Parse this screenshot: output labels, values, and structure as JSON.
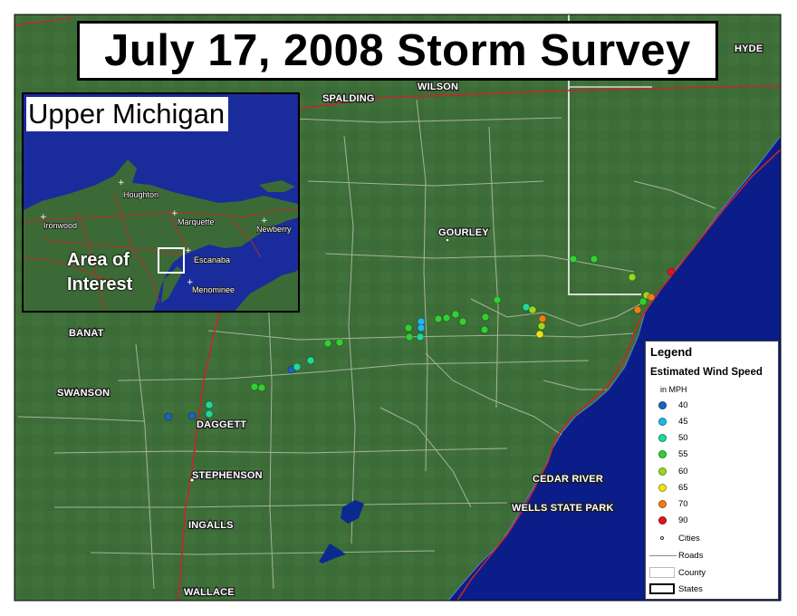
{
  "title": "July 17, 2008 Storm Survey",
  "inset": {
    "title": "Upper Michigan",
    "area_label_line1": "Area of",
    "area_label_line2": "Interest",
    "cities": [
      "Houghton",
      "Ironwood",
      "Marquette",
      "Newberry",
      "Escanaba",
      "Menominee"
    ]
  },
  "map_labels": [
    "SPALDING",
    "WILSON",
    "HYDE",
    "GOURLEY",
    "BANAT",
    "SWANSON",
    "DAGGETT",
    "STEPHENSON",
    "INGALLS",
    "WALLACE",
    "CEDAR RIVER",
    "WELLS STATE PARK"
  ],
  "legend": {
    "title": "Legend",
    "subtitle": "Estimated Wind Speed",
    "units": "in MPH",
    "speeds": [
      {
        "label": "40",
        "color": "#1b62c4"
      },
      {
        "label": "45",
        "color": "#1fb7ee"
      },
      {
        "label": "50",
        "color": "#21d89a"
      },
      {
        "label": "55",
        "color": "#33cf33"
      },
      {
        "label": "60",
        "color": "#9ad71f"
      },
      {
        "label": "65",
        "color": "#f0e318"
      },
      {
        "label": "70",
        "color": "#f07d14"
      },
      {
        "label": "90",
        "color": "#e0141e"
      }
    ],
    "cities_label": "Cities",
    "roads_label": "Roads",
    "county_label": "County",
    "states_label": "States"
  },
  "colors": {
    "land": "#3d6e38",
    "water": "#0a1d88",
    "roads_major": "#c0292b",
    "roads_minor": "#b9c3b0"
  }
}
